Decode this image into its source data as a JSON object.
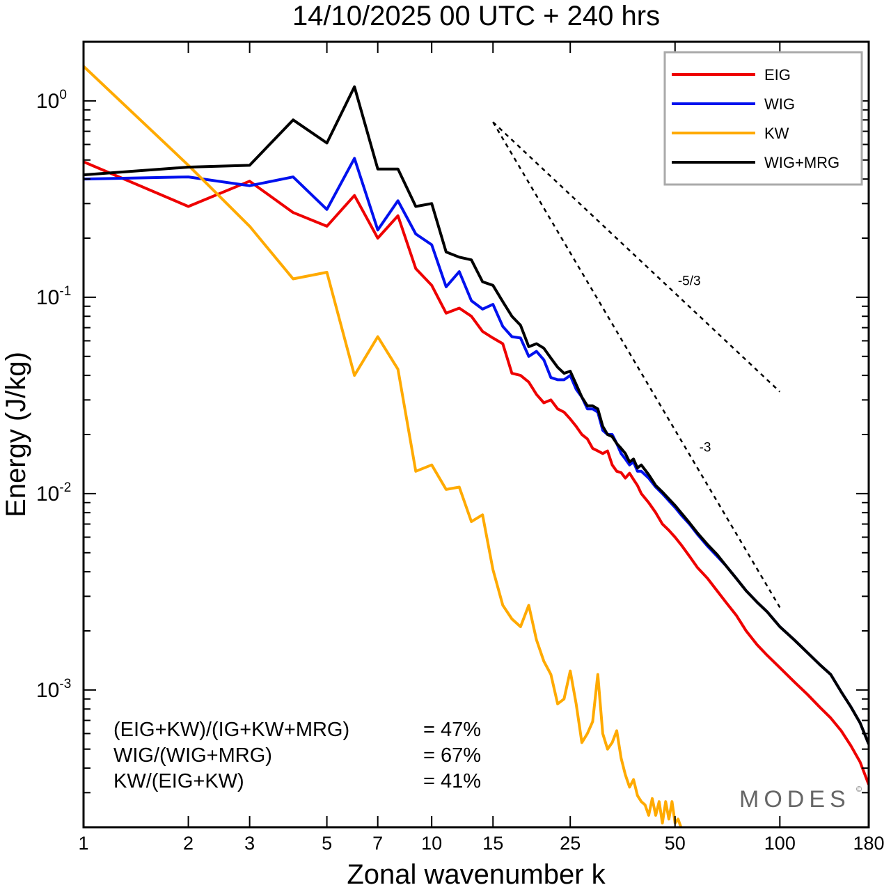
{
  "colors": {
    "eig": "#ee0000",
    "wig": "#0011ee",
    "kw": "#ffaa00",
    "wig_mrg": "#000000"
  },
  "chart_data": {
    "type": "line",
    "title": "14/10/2025  00 UTC  + 240 hrs",
    "xlabel": "Zonal wavenumber k",
    "ylabel": "Energy (J/kg)",
    "xscale": "log",
    "yscale": "log",
    "xlim": [
      1,
      180
    ],
    "ylim": [
      0.0002,
      2.0
    ],
    "x_ticks": [
      {
        "v": 1,
        "label": "1"
      },
      {
        "v": 2,
        "label": "2"
      },
      {
        "v": 3,
        "label": "3"
      },
      {
        "v": 5,
        "label": "5"
      },
      {
        "v": 7,
        "label": "7"
      },
      {
        "v": 10,
        "label": "10"
      },
      {
        "v": 15,
        "label": "15"
      },
      {
        "v": 25,
        "label": "25"
      },
      {
        "v": 50,
        "label": "50"
      },
      {
        "v": 100,
        "label": "100"
      },
      {
        "v": 180,
        "label": "180"
      }
    ],
    "y_ticks": [
      {
        "v": 0.001,
        "base": "10",
        "exp": "-3"
      },
      {
        "v": 0.01,
        "base": "10",
        "exp": "-2"
      },
      {
        "v": 0.1,
        "base": "10",
        "exp": "-1"
      },
      {
        "v": 1,
        "base": "10",
        "exp": "0"
      }
    ],
    "legend_position": "top-right",
    "series": [
      {
        "name": "EIG",
        "color_key": "eig",
        "points": [
          [
            1,
            0.49
          ],
          [
            2,
            0.29
          ],
          [
            3,
            0.39
          ],
          [
            4,
            0.27
          ],
          [
            5,
            0.23
          ],
          [
            6,
            0.33
          ],
          [
            7,
            0.2
          ],
          [
            8,
            0.26
          ],
          [
            9,
            0.14
          ],
          [
            10,
            0.115
          ],
          [
            11,
            0.083
          ],
          [
            12,
            0.088
          ],
          [
            13,
            0.08
          ],
          [
            14,
            0.067
          ],
          [
            15,
            0.062
          ],
          [
            16,
            0.058
          ],
          [
            17,
            0.041
          ],
          [
            18,
            0.04
          ],
          [
            19,
            0.037
          ],
          [
            20,
            0.032
          ],
          [
            21,
            0.029
          ],
          [
            22,
            0.03
          ],
          [
            23,
            0.027
          ],
          [
            24,
            0.026
          ],
          [
            25,
            0.024
          ],
          [
            26,
            0.022
          ],
          [
            27,
            0.02
          ],
          [
            28,
            0.019
          ],
          [
            29,
            0.017
          ],
          [
            30,
            0.0165
          ],
          [
            31,
            0.016
          ],
          [
            32,
            0.0165
          ],
          [
            33,
            0.014
          ],
          [
            34,
            0.013
          ],
          [
            35,
            0.0128
          ],
          [
            36,
            0.012
          ],
          [
            37,
            0.0127
          ],
          [
            38,
            0.0118
          ],
          [
            39,
            0.011
          ],
          [
            40,
            0.01
          ],
          [
            42,
            0.009
          ],
          [
            44,
            0.008
          ],
          [
            46,
            0.007
          ],
          [
            48,
            0.0065
          ],
          [
            50,
            0.006
          ],
          [
            52,
            0.0055
          ],
          [
            55,
            0.0048
          ],
          [
            58,
            0.0042
          ],
          [
            62,
            0.0037
          ],
          [
            66,
            0.0032
          ],
          [
            70,
            0.0028
          ],
          [
            75,
            0.0024
          ],
          [
            80,
            0.002
          ],
          [
            86,
            0.0017
          ],
          [
            92,
            0.0015
          ],
          [
            100,
            0.0013
          ],
          [
            110,
            0.0011
          ],
          [
            120,
            0.00095
          ],
          [
            130,
            0.00082
          ],
          [
            140,
            0.00072
          ],
          [
            150,
            0.00062
          ],
          [
            160,
            0.00052
          ],
          [
            170,
            0.00043
          ],
          [
            180,
            0.00033
          ]
        ]
      },
      {
        "name": "WIG",
        "color_key": "wig",
        "points": [
          [
            1,
            0.4
          ],
          [
            2,
            0.41
          ],
          [
            3,
            0.37
          ],
          [
            4,
            0.41
          ],
          [
            5,
            0.28
          ],
          [
            6,
            0.51
          ],
          [
            7,
            0.22
          ],
          [
            8,
            0.31
          ],
          [
            9,
            0.21
          ],
          [
            10,
            0.185
          ],
          [
            11,
            0.113
          ],
          [
            12,
            0.135
          ],
          [
            13,
            0.096
          ],
          [
            14,
            0.087
          ],
          [
            15,
            0.092
          ],
          [
            16,
            0.071
          ],
          [
            17,
            0.063
          ],
          [
            18,
            0.062
          ],
          [
            19,
            0.05
          ],
          [
            20,
            0.053
          ],
          [
            21,
            0.048
          ],
          [
            22,
            0.039
          ],
          [
            23,
            0.038
          ],
          [
            24,
            0.038
          ],
          [
            25,
            0.04
          ],
          [
            26,
            0.034
          ],
          [
            27,
            0.031
          ],
          [
            28,
            0.027
          ],
          [
            29,
            0.027
          ],
          [
            30,
            0.026
          ],
          [
            31,
            0.021
          ],
          [
            32,
            0.02
          ],
          [
            33,
            0.02
          ],
          [
            34,
            0.018
          ],
          [
            35,
            0.016
          ],
          [
            36,
            0.015
          ],
          [
            37,
            0.014
          ],
          [
            38,
            0.0145
          ],
          [
            39,
            0.013
          ],
          [
            40,
            0.013
          ],
          [
            42,
            0.012
          ],
          [
            44,
            0.0108
          ],
          [
            46,
            0.01
          ],
          [
            48,
            0.0092
          ],
          [
            50,
            0.0085
          ],
          [
            52,
            0.0078
          ],
          [
            55,
            0.007
          ],
          [
            58,
            0.0062
          ],
          [
            62,
            0.0054
          ],
          [
            66,
            0.0048
          ],
          [
            70,
            0.0043
          ],
          [
            75,
            0.0037
          ],
          [
            80,
            0.0032
          ],
          [
            86,
            0.0028
          ],
          [
            92,
            0.0025
          ],
          [
            100,
            0.0021
          ],
          [
            110,
            0.0018
          ],
          [
            120,
            0.00155
          ],
          [
            130,
            0.00135
          ],
          [
            140,
            0.0012
          ],
          [
            150,
            0.00098
          ],
          [
            160,
            0.00082
          ],
          [
            170,
            0.00068
          ],
          [
            180,
            0.00053
          ]
        ]
      },
      {
        "name": "KW",
        "color_key": "kw",
        "points": [
          [
            1,
            1.5
          ],
          [
            2,
            0.47
          ],
          [
            3,
            0.23
          ],
          [
            4,
            0.124
          ],
          [
            5,
            0.134
          ],
          [
            6,
            0.04
          ],
          [
            7,
            0.063
          ],
          [
            8,
            0.043
          ],
          [
            9,
            0.013
          ],
          [
            10,
            0.014
          ],
          [
            11,
            0.0105
          ],
          [
            12,
            0.0108
          ],
          [
            13,
            0.0072
          ],
          [
            14,
            0.0078
          ],
          [
            15,
            0.0041
          ],
          [
            16,
            0.0027
          ],
          [
            17,
            0.0023
          ],
          [
            18,
            0.0021
          ],
          [
            19,
            0.0027
          ],
          [
            20,
            0.0018
          ],
          [
            21,
            0.0014
          ],
          [
            22,
            0.0012
          ],
          [
            23,
            0.00085
          ],
          [
            24,
            0.0009
          ],
          [
            25,
            0.00125
          ],
          [
            26,
            0.00085
          ],
          [
            27,
            0.00054
          ],
          [
            28,
            0.0006
          ],
          [
            29,
            0.00069
          ],
          [
            30,
            0.0012
          ],
          [
            31,
            0.0006
          ],
          [
            32,
            0.0005
          ],
          [
            33,
            0.00054
          ],
          [
            34,
            0.00062
          ],
          [
            35,
            0.00045
          ],
          [
            36,
            0.00037
          ],
          [
            37,
            0.00032
          ],
          [
            38,
            0.00035
          ],
          [
            39,
            0.00029
          ],
          [
            40,
            0.00027
          ],
          [
            41,
            0.00026
          ],
          [
            42,
            0.00023
          ],
          [
            43,
            0.00028
          ],
          [
            44,
            0.00023
          ],
          [
            45,
            0.00027
          ],
          [
            46,
            0.00021
          ],
          [
            47,
            0.00027
          ],
          [
            48,
            0.00022
          ],
          [
            49,
            0.00027
          ],
          [
            50,
            0.00021
          ],
          [
            51,
            0.00022
          ],
          [
            52,
            0.0002
          ]
        ]
      },
      {
        "name": "WIG+MRG",
        "color_key": "wig_mrg",
        "points": [
          [
            1,
            0.42
          ],
          [
            2,
            0.46
          ],
          [
            3,
            0.47
          ],
          [
            4,
            0.8
          ],
          [
            5,
            0.61
          ],
          [
            6,
            1.18
          ],
          [
            7,
            0.45
          ],
          [
            8,
            0.45
          ],
          [
            9,
            0.29
          ],
          [
            10,
            0.3
          ],
          [
            11,
            0.17
          ],
          [
            12,
            0.16
          ],
          [
            13,
            0.155
          ],
          [
            14,
            0.12
          ],
          [
            15,
            0.115
          ],
          [
            16,
            0.095
          ],
          [
            17,
            0.08
          ],
          [
            18,
            0.072
          ],
          [
            19,
            0.056
          ],
          [
            20,
            0.058
          ],
          [
            21,
            0.055
          ],
          [
            22,
            0.049
          ],
          [
            23,
            0.044
          ],
          [
            24,
            0.041
          ],
          [
            25,
            0.042
          ],
          [
            26,
            0.036
          ],
          [
            27,
            0.031
          ],
          [
            28,
            0.028
          ],
          [
            29,
            0.028
          ],
          [
            30,
            0.027
          ],
          [
            31,
            0.022
          ],
          [
            32,
            0.02
          ],
          [
            33,
            0.0195
          ],
          [
            34,
            0.018
          ],
          [
            35,
            0.017
          ],
          [
            36,
            0.016
          ],
          [
            37,
            0.0145
          ],
          [
            38,
            0.015
          ],
          [
            39,
            0.0135
          ],
          [
            40,
            0.014
          ],
          [
            42,
            0.0125
          ],
          [
            44,
            0.011
          ],
          [
            46,
            0.0102
          ],
          [
            48,
            0.0094
          ],
          [
            50,
            0.0087
          ],
          [
            52,
            0.008
          ],
          [
            55,
            0.0071
          ],
          [
            58,
            0.0063
          ],
          [
            62,
            0.0055
          ],
          [
            66,
            0.0049
          ],
          [
            70,
            0.0043
          ],
          [
            75,
            0.0037
          ],
          [
            80,
            0.0032
          ],
          [
            86,
            0.0028
          ],
          [
            92,
            0.0025
          ],
          [
            100,
            0.0021
          ],
          [
            110,
            0.0018
          ],
          [
            120,
            0.00155
          ],
          [
            130,
            0.00135
          ],
          [
            140,
            0.0012
          ],
          [
            150,
            0.00098
          ],
          [
            160,
            0.00082
          ],
          [
            170,
            0.00068
          ],
          [
            180,
            0.00053
          ]
        ]
      }
    ],
    "reference_slopes": [
      {
        "label": "-5/3",
        "slope": -1.6667,
        "x0": 15,
        "y0": 0.78,
        "x1": 100
      },
      {
        "label": "-3",
        "slope": -3,
        "x0": 15,
        "y0": 0.78,
        "x1": 100
      }
    ],
    "annotations": [
      {
        "text": "(EIG+KW)/(IG+KW+MRG)",
        "value": "= 47%"
      },
      {
        "text": "WIG/(WIG+MRG)",
        "value": "= 67%"
      },
      {
        "text": "KW/(EIG+KW)",
        "value": "= 41%"
      }
    ],
    "watermark": "MODES",
    "watermark_mark": "©"
  }
}
